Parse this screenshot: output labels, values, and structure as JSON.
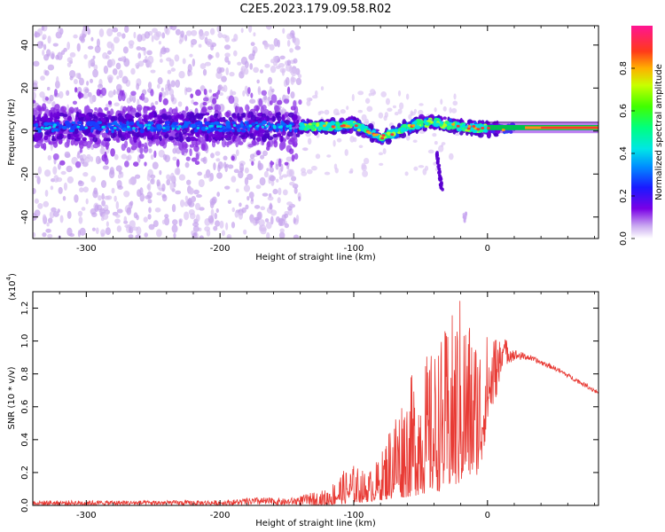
{
  "title": "C2E5.2023.179.09.58.R02",
  "colors": {
    "snr_line": "#e83a34",
    "frame": "#000000",
    "background": "#ffffff"
  },
  "chart_data": [
    {
      "type": "heatmap",
      "xlabel": "Height of straight line (km)",
      "ylabel": "Frequency (Hz)",
      "xlim": [
        -340,
        83
      ],
      "ylim": [
        -50,
        49
      ],
      "xticks": [
        -300,
        -200,
        -100,
        0
      ],
      "xtick_labels": [
        "-300",
        "-200",
        "-100",
        "0"
      ],
      "yticks": [
        -40,
        -20,
        0,
        20,
        40
      ],
      "ytick_labels": [
        "-40",
        "-20",
        "0",
        "20",
        "40"
      ],
      "colorbar": {
        "label": "Normalized spectral amplitude",
        "range": [
          0,
          1
        ],
        "ticks": [
          0.0,
          0.2,
          0.4,
          0.6,
          0.8
        ],
        "tick_labels": [
          "0.0",
          "0.2",
          "0.4",
          "0.6",
          "0.8"
        ],
        "colormap": [
          "#e6d7f3",
          "#7a00e6",
          "#1a1aff",
          "#00e6e6",
          "#00ff40",
          "#c8ff00",
          "#ffb000",
          "#ff2020",
          "#ff1493"
        ]
      },
      "band_center_trace": [
        {
          "x": -340,
          "y": 2
        },
        {
          "x": -250,
          "y": 2
        },
        {
          "x": -150,
          "y": 2
        },
        {
          "x": -120,
          "y": 2
        },
        {
          "x": -100,
          "y": 3
        },
        {
          "x": -90,
          "y": 0
        },
        {
          "x": -80,
          "y": -3
        },
        {
          "x": -70,
          "y": -1
        },
        {
          "x": -55,
          "y": 3
        },
        {
          "x": -40,
          "y": 4
        },
        {
          "x": -20,
          "y": 2
        },
        {
          "x": 0,
          "y": 1
        },
        {
          "x": 40,
          "y": 1.5
        },
        {
          "x": 83,
          "y": 1.5
        }
      ]
    },
    {
      "type": "line",
      "xlabel": "Height of straight line (km)",
      "ylabel": "SNR (10 * v/v)",
      "scale_label": "(x10",
      "scale_exponent": "4",
      "scale_close": ")",
      "xlim": [
        -340,
        83
      ],
      "ylim": [
        0,
        1.3
      ],
      "xticks": [
        -300,
        -200,
        -100,
        0
      ],
      "xtick_labels": [
        "-300",
        "-200",
        "-100",
        "0"
      ],
      "yticks": [
        0.0,
        0.2,
        0.4,
        0.6,
        0.8,
        1.0,
        1.2
      ],
      "ytick_labels": [
        "0.0",
        "0.2",
        "0.4",
        "0.6",
        "0.8",
        "1.0",
        "1.2"
      ],
      "series": [
        {
          "color": "#e83a34",
          "upper_envelope": [
            {
              "x": -340,
              "y": 0.03
            },
            {
              "x": -200,
              "y": 0.03
            },
            {
              "x": -170,
              "y": 0.05
            },
            {
              "x": -150,
              "y": 0.04
            },
            {
              "x": -120,
              "y": 0.1
            },
            {
              "x": -110,
              "y": 0.2
            },
            {
              "x": -100,
              "y": 0.25
            },
            {
              "x": -90,
              "y": 0.2
            },
            {
              "x": -80,
              "y": 0.3
            },
            {
              "x": -70,
              "y": 0.6
            },
            {
              "x": -60,
              "y": 0.75
            },
            {
              "x": -50,
              "y": 0.9
            },
            {
              "x": -40,
              "y": 0.95
            },
            {
              "x": -30,
              "y": 1.1
            },
            {
              "x": -20,
              "y": 1.3
            },
            {
              "x": -10,
              "y": 1.1
            },
            {
              "x": 0,
              "y": 1.05
            },
            {
              "x": 10,
              "y": 1.05
            },
            {
              "x": 20,
              "y": 0.95
            },
            {
              "x": 30,
              "y": 0.92
            },
            {
              "x": 50,
              "y": 0.85
            },
            {
              "x": 70,
              "y": 0.76
            },
            {
              "x": 83,
              "y": 0.7
            }
          ],
          "lower_envelope": [
            {
              "x": -340,
              "y": 0.0
            },
            {
              "x": -120,
              "y": 0.0
            },
            {
              "x": -90,
              "y": 0.02
            },
            {
              "x": -60,
              "y": 0.05
            },
            {
              "x": -40,
              "y": 0.08
            },
            {
              "x": -25,
              "y": 0.1
            },
            {
              "x": -15,
              "y": 0.15
            },
            {
              "x": -5,
              "y": 0.2
            },
            {
              "x": 0,
              "y": 0.5
            },
            {
              "x": 10,
              "y": 0.75
            },
            {
              "x": 20,
              "y": 0.85
            },
            {
              "x": 30,
              "y": 0.87
            },
            {
              "x": 50,
              "y": 0.81
            },
            {
              "x": 70,
              "y": 0.72
            },
            {
              "x": 83,
              "y": 0.66
            }
          ]
        }
      ]
    }
  ]
}
